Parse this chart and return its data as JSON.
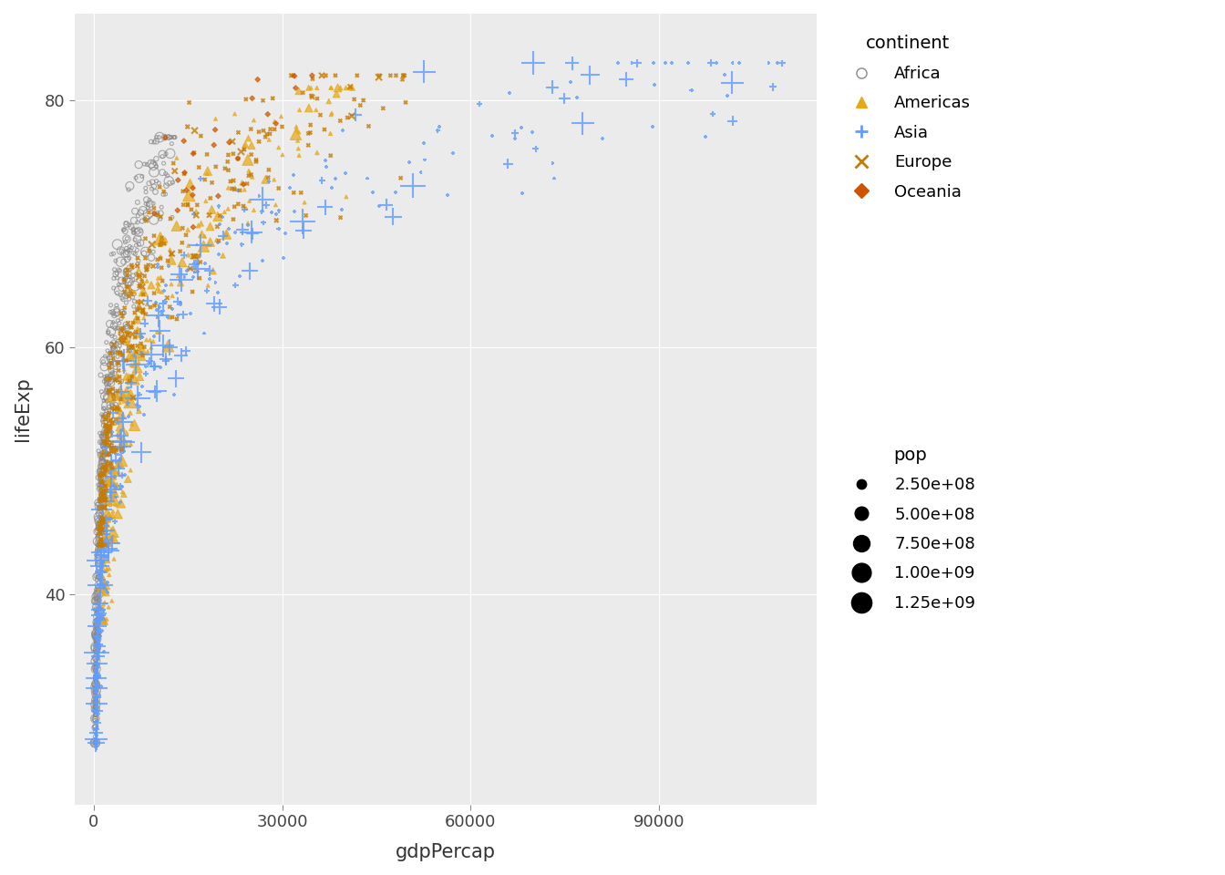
{
  "title": "",
  "xlabel": "gdpPercap",
  "ylabel": "lifeExp",
  "xlim": [
    -3000,
    115000
  ],
  "ylim": [
    23,
    87
  ],
  "xticks": [
    0,
    30000,
    60000,
    90000
  ],
  "yticks": [
    40,
    60,
    80
  ],
  "bg_color": "#EBEBEB",
  "grid_color": "#FFFFFF",
  "continent_colors": {
    "Africa": "#888888",
    "Americas": "#E6A817",
    "Asia": "#619CFF",
    "Europe": "#C77B00",
    "Oceania": "#CC5500"
  },
  "continent_markers": {
    "Africa": "o",
    "Americas": "^",
    "Asia": "+",
    "Europe": "x",
    "Oceania": "D"
  },
  "legend_title_continent": "continent",
  "legend_title_pop": "pop",
  "pop_legend_values": [
    250000000.0,
    500000000.0,
    750000000.0,
    1000000000.0,
    1250000000.0
  ],
  "pop_legend_labels": [
    "2.50e+08",
    "5.00e+08",
    "7.50e+08",
    "1.00e+09",
    "1.25e+09"
  ],
  "base_size": 4,
  "size_scale": 3.5e-09
}
